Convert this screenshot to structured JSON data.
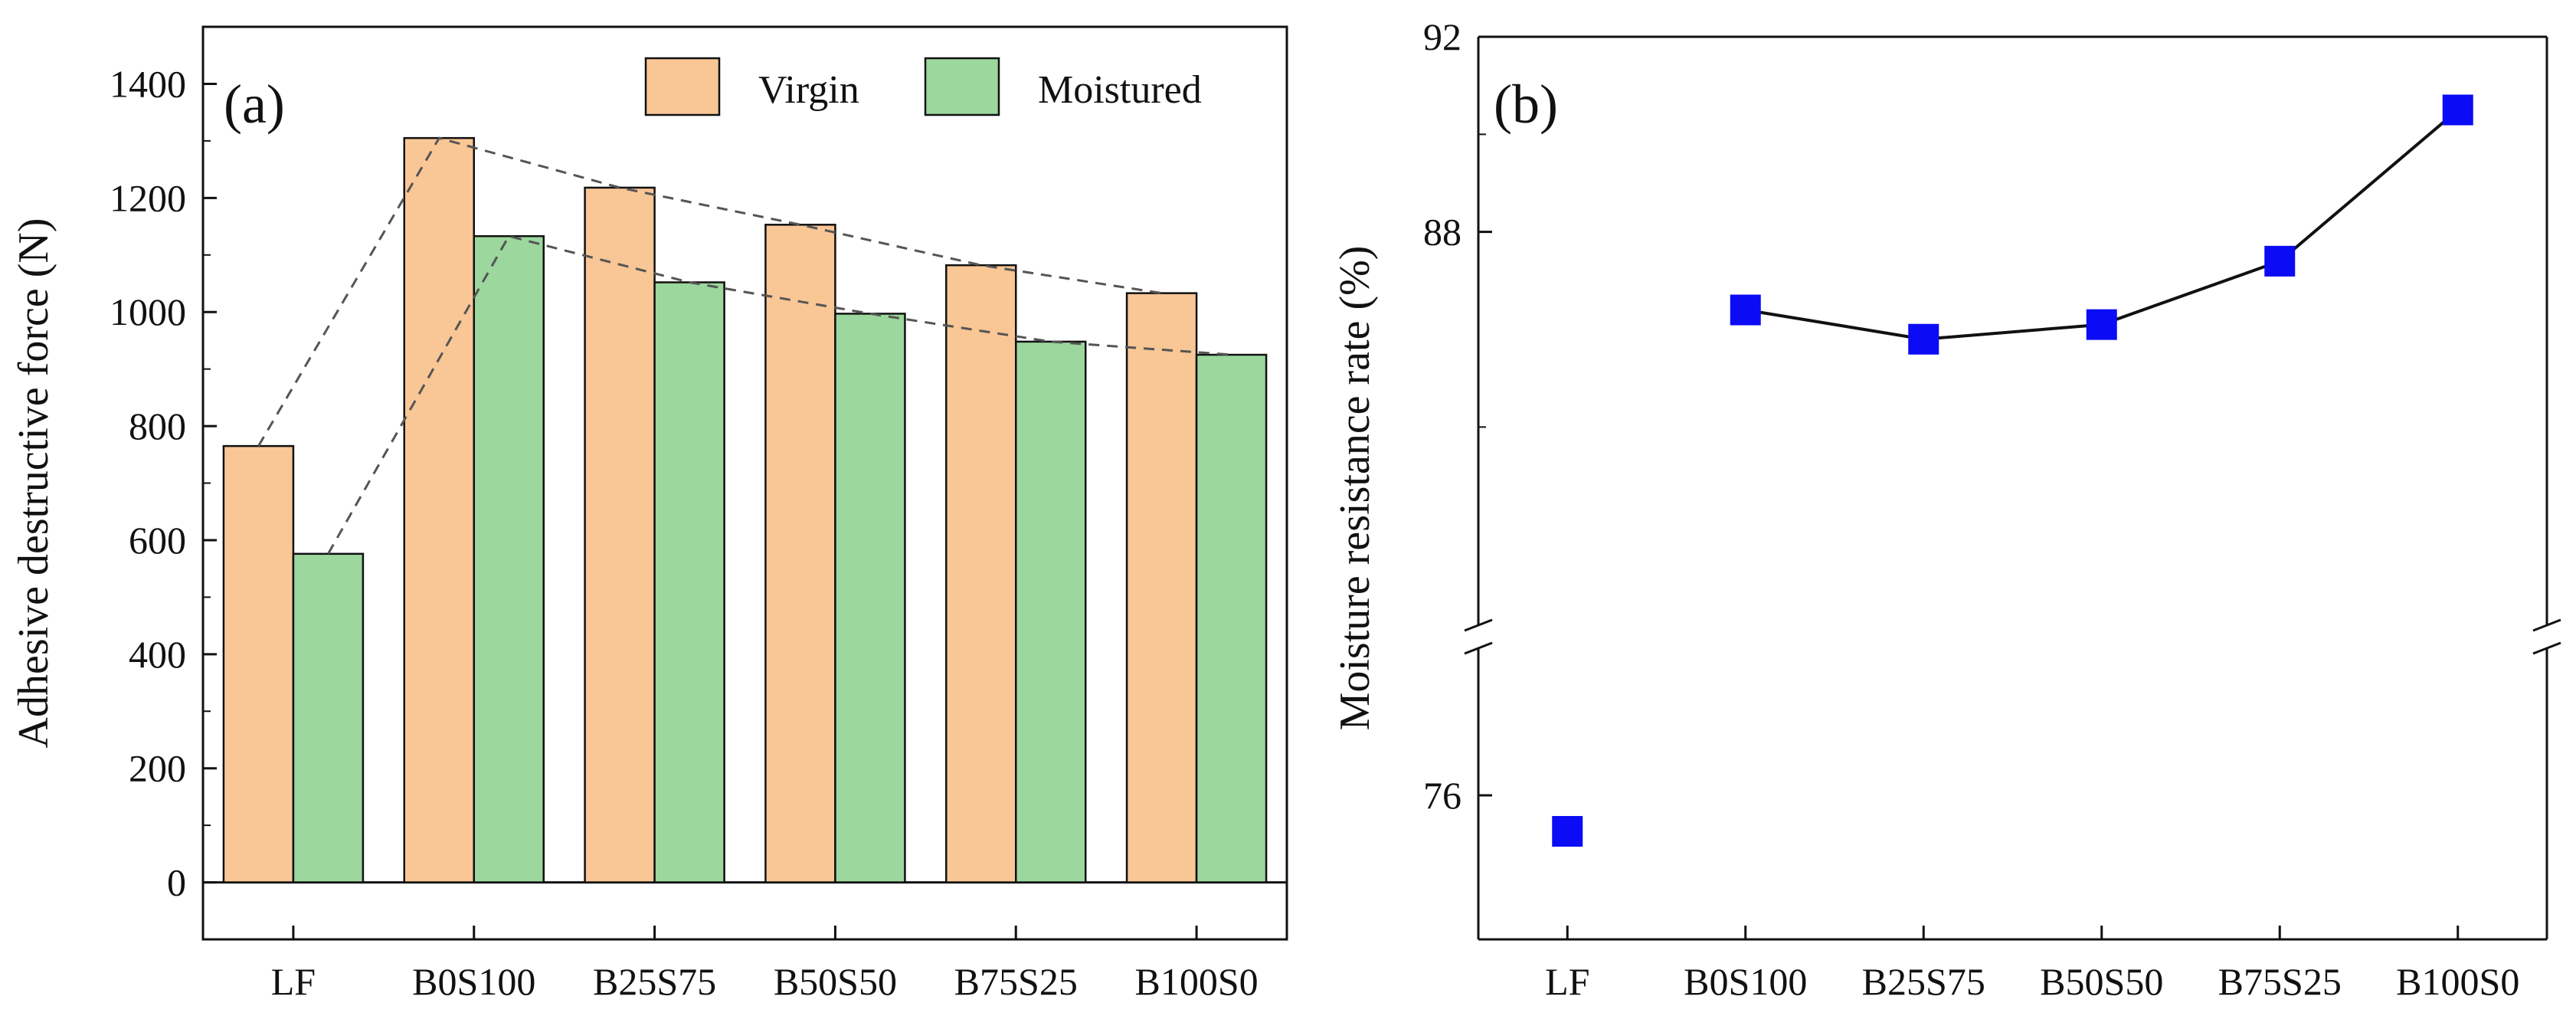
{
  "chart_data": [
    {
      "panel": "(a)",
      "type": "bar",
      "categories": [
        "LF",
        "B0S100",
        "B25S75",
        "B50S50",
        "B75S25",
        "B100S0"
      ],
      "series": [
        {
          "name": "Virgin",
          "values": [
            765,
            1305,
            1218,
            1153,
            1082,
            1033
          ],
          "color": "#F9C696"
        },
        {
          "name": "Moistured",
          "values": [
            576,
            1133,
            1052,
            997,
            948,
            925
          ],
          "color": "#9CD79D"
        }
      ],
      "trend_lines": [
        {
          "series": "Virgin",
          "style": "dashed"
        },
        {
          "series": "Moistured",
          "style": "dashed"
        }
      ],
      "xlabel": "",
      "ylabel": "Adhesive destructive force (N)",
      "ylim": [
        -100,
        1500
      ],
      "yticks": [
        0,
        200,
        400,
        600,
        800,
        1000,
        1200,
        1400
      ],
      "legend": "top-right"
    },
    {
      "panel": "(b)",
      "type": "line",
      "categories": [
        "LF",
        "B0S100",
        "B25S75",
        "B50S50",
        "B75S25",
        "B100S0"
      ],
      "values": [
        75.5,
        86.4,
        85.8,
        86.1,
        87.4,
        90.5
      ],
      "connected_from_index": 1,
      "marker": "square",
      "color": "#0B0BF5",
      "xlabel": "",
      "ylabel": "Moisture resistance rate (%)",
      "y_axis_break": true,
      "ylim_lower_segment": [
        74,
        78
      ],
      "ylim_upper_segment": [
        80,
        92
      ],
      "yticks": [
        76,
        88,
        92
      ]
    }
  ]
}
